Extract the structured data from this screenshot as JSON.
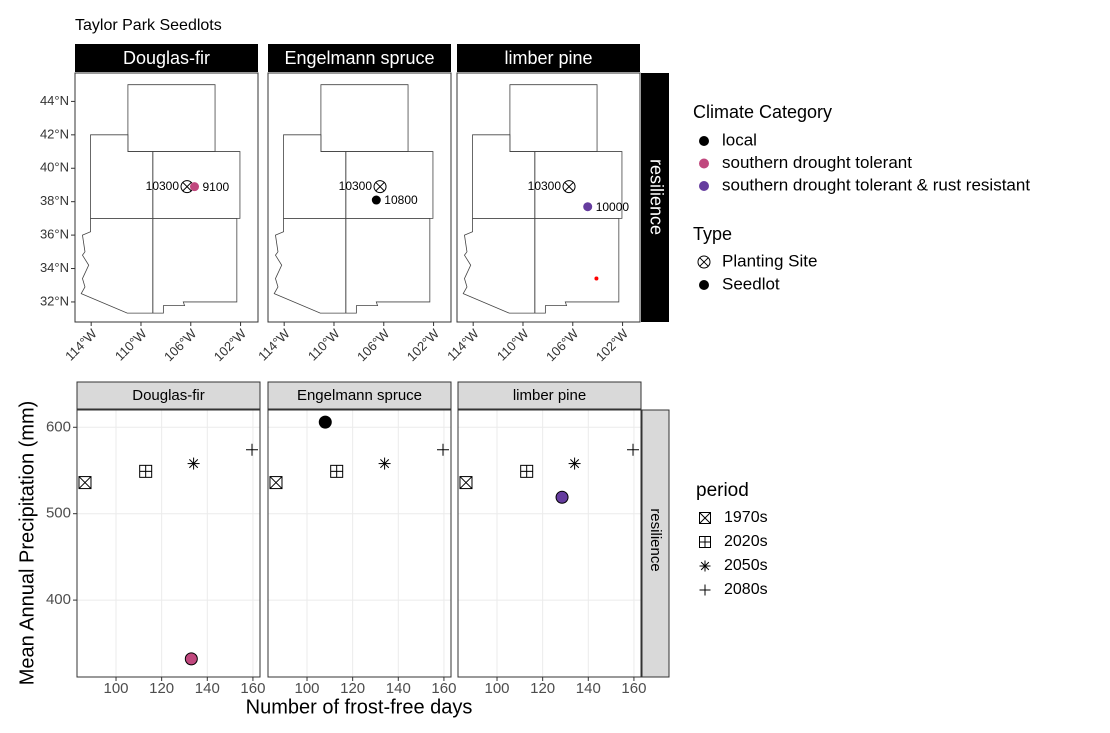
{
  "chart_data": [
    {
      "type": "map",
      "title": "Taylor Park Seedlots",
      "panels": [
        "Douglas-fir",
        "Engelmann spruce",
        "limber pine"
      ],
      "strip": "resilience",
      "xlim": [
        -115.3,
        -100.6
      ],
      "ylim": [
        30.8,
        45.7
      ],
      "xticks": [
        {
          "value": -114,
          "label": "114°W"
        },
        {
          "value": -110,
          "label": "110°W"
        },
        {
          "value": -106,
          "label": "106°W"
        },
        {
          "value": -102,
          "label": "102°W"
        }
      ],
      "yticks": [
        {
          "value": 32,
          "label": "32°N"
        },
        {
          "value": 34,
          "label": "34°N"
        },
        {
          "value": 36,
          "label": "36°N"
        },
        {
          "value": 38,
          "label": "38°N"
        },
        {
          "value": 40,
          "label": "40°N"
        },
        {
          "value": 42,
          "label": "42°N"
        },
        {
          "value": 44,
          "label": "44°N"
        }
      ],
      "planting_site": {
        "x": -106.3,
        "y": 38.9,
        "label": 10300
      },
      "seedlots": [
        {
          "panel": 0,
          "x": -105.7,
          "y": 38.9,
          "label": 9100,
          "category": 1
        },
        {
          "panel": 1,
          "x": -106.6,
          "y": 38.1,
          "label": 10800,
          "category": 0
        },
        {
          "panel": 2,
          "x": -104.8,
          "y": 37.7,
          "label": 10000,
          "category": 2
        }
      ],
      "extra_points": [
        {
          "panel": 2,
          "x": -104.1,
          "y": 33.4,
          "color": "#ff0000"
        }
      ],
      "category_title": "Climate Category",
      "categories": [
        {
          "name": "local",
          "color": "#000000"
        },
        {
          "name": "southern drought tolerant",
          "color": "#c0487e"
        },
        {
          "name": "southern drought tolerant & rust resistant",
          "color": "#653c9e"
        }
      ],
      "type_title": "Type",
      "types": [
        "Planting Site",
        "Seedlot"
      ]
    },
    {
      "type": "scatter",
      "panels": [
        "Douglas-fir",
        "Engelmann spruce",
        "limber pine"
      ],
      "strip": "resilience",
      "xlabel": "Number of frost-free days",
      "ylabel": "Mean Annual Precipitation (mm)",
      "xlim": [
        82.9,
        163.1
      ],
      "ylim": [
        311,
        620
      ],
      "xticks": [
        100,
        120,
        140,
        160
      ],
      "yticks": [
        400,
        500,
        600
      ],
      "grid": true,
      "period_title": "period",
      "periods": [
        {
          "name": "1970s",
          "x": 86.4,
          "y": 536,
          "shape": "box-x"
        },
        {
          "name": "2020s",
          "x": 113,
          "y": 549,
          "shape": "box-plus"
        },
        {
          "name": "2050s",
          "x": 134,
          "y": 558,
          "shape": "asterisk"
        },
        {
          "name": "2080s",
          "x": 159.6,
          "y": 574,
          "shape": "plus"
        }
      ],
      "seedlots": [
        {
          "panel": 0,
          "x": 133,
          "y": 332,
          "color": "#c0487e"
        },
        {
          "panel": 1,
          "x": 108,
          "y": 606,
          "color": "#000000"
        },
        {
          "panel": 2,
          "x": 128.5,
          "y": 519,
          "color": "#653c9e"
        }
      ]
    }
  ]
}
